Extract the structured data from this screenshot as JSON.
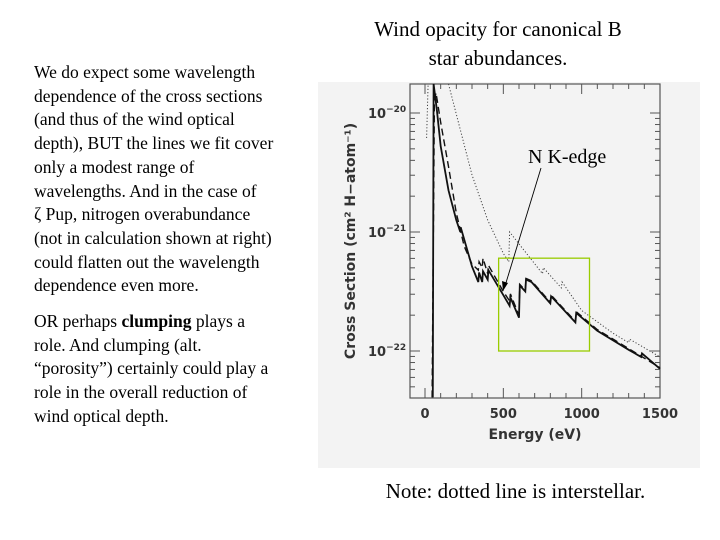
{
  "slide": {
    "title_lines": [
      "Wind opacity for canonical B",
      "star abundances."
    ],
    "paragraph1_lines": [
      "We do expect some wavelength",
      "dependence of the cross sections",
      "(and thus of the wind optical",
      "depth), BUT the lines we fit cover",
      "only a modest range of",
      "wavelengths.  And in the case of",
      "ζ Pup, nitrogen overabundance",
      "(not in calculation shown at right)",
      "could flatten out the wavelength",
      "dependence even more."
    ],
    "paragraph2": {
      "line1_pre": "OR perhaps ",
      "line1_bold": "clumping",
      "line1_post": " plays a",
      "lines": [
        "role.  And clumping (alt.",
        "“porosity”) certainly could play a",
        "role in the overall reduction of",
        "wind optical depth."
      ]
    },
    "note": "Note: dotted line is interstellar.",
    "annotation": "N K-edge",
    "highlight_color": "#99cc00"
  },
  "chart_data": {
    "type": "line",
    "xlabel": "Energy (eV)",
    "ylabel": "Cross Section (cm² H−atom⁻¹)",
    "xlim": [
      -100,
      1500
    ],
    "ylim_log10": [
      -22.39,
      -19.75
    ],
    "yscale": "log",
    "xticks": [
      "0",
      "500",
      "1000",
      "1500"
    ],
    "xtick_values": [
      0,
      500,
      1000,
      1500
    ],
    "yticks": [
      {
        "base": "10",
        "exp": "−20",
        "log10": -20
      },
      {
        "base": "10",
        "exp": "−21",
        "log10": -21
      },
      {
        "base": "10",
        "exp": "−22",
        "log10": -22
      }
    ],
    "annotation": {
      "text": "N K-edge",
      "x": 500,
      "y_log10": -21.45
    },
    "highlight_box": {
      "x": [
        470,
        1050
      ],
      "y_log10": [
        -22.0,
        -21.22
      ]
    },
    "series": [
      {
        "name": "wind (solid)",
        "style": "solid",
        "points": [
          [
            50,
            -22.39
          ],
          [
            55,
            -19.75
          ],
          [
            75,
            -19.97
          ],
          [
            100,
            -20.28
          ],
          [
            150,
            -20.65
          ],
          [
            200,
            -20.9
          ],
          [
            225,
            -21.0
          ],
          [
            228,
            -20.96
          ],
          [
            300,
            -21.29
          ],
          [
            340,
            -21.42
          ],
          [
            345,
            -21.34
          ],
          [
            365,
            -21.42
          ],
          [
            370,
            -21.33
          ],
          [
            400,
            -21.4
          ],
          [
            405,
            -21.32
          ],
          [
            500,
            -21.53
          ],
          [
            540,
            -21.62
          ],
          [
            545,
            -21.55
          ],
          [
            600,
            -21.72
          ],
          [
            605,
            -21.45
          ],
          [
            640,
            -21.5
          ],
          [
            645,
            -21.4
          ],
          [
            680,
            -21.42
          ],
          [
            800,
            -21.6
          ],
          [
            805,
            -21.54
          ],
          [
            960,
            -21.76
          ],
          [
            965,
            -21.68
          ],
          [
            1100,
            -21.83
          ],
          [
            1300,
            -21.99
          ],
          [
            1380,
            -22.05
          ],
          [
            1385,
            -22.02
          ],
          [
            1500,
            -22.15
          ]
        ]
      },
      {
        "name": "wind (dashed)",
        "style": "dashed",
        "points": [
          [
            45,
            -22.39
          ],
          [
            60,
            -19.9
          ],
          [
            70,
            -19.83
          ],
          [
            100,
            -20.08
          ],
          [
            150,
            -20.45
          ],
          [
            200,
            -20.84
          ],
          [
            250,
            -21.12
          ],
          [
            300,
            -21.27
          ],
          [
            340,
            -21.32
          ],
          [
            345,
            -21.25
          ],
          [
            365,
            -21.3
          ],
          [
            370,
            -21.22
          ],
          [
            400,
            -21.35
          ],
          [
            405,
            -21.28
          ],
          [
            500,
            -21.5
          ],
          [
            540,
            -21.58
          ],
          [
            545,
            -21.52
          ],
          [
            600,
            -21.7
          ],
          [
            605,
            -21.44
          ],
          [
            640,
            -21.49
          ],
          [
            645,
            -21.39
          ],
          [
            680,
            -21.41
          ],
          [
            800,
            -21.59
          ],
          [
            805,
            -21.53
          ],
          [
            960,
            -21.75
          ],
          [
            965,
            -21.67
          ],
          [
            1100,
            -21.82
          ],
          [
            1300,
            -21.98
          ],
          [
            1500,
            -22.14
          ]
        ]
      },
      {
        "name": "interstellar (dotted)",
        "style": "dotted",
        "points": [
          [
            10,
            -20.21
          ],
          [
            20,
            -19.75
          ]
        ]
      },
      {
        "name": "interstellar (dotted) cont.",
        "style": "dotted",
        "points": [
          [
            150,
            -19.75
          ],
          [
            300,
            -20.52
          ],
          [
            400,
            -20.9
          ],
          [
            500,
            -21.18
          ],
          [
            535,
            -21.25
          ],
          [
            540,
            -21.0
          ],
          [
            600,
            -21.1
          ],
          [
            750,
            -21.35
          ],
          [
            755,
            -21.3
          ],
          [
            870,
            -21.47
          ],
          [
            875,
            -21.42
          ],
          [
            1000,
            -21.66
          ],
          [
            1200,
            -21.85
          ],
          [
            1300,
            -21.93
          ],
          [
            1305,
            -21.9
          ],
          [
            1500,
            -22.05
          ]
        ]
      }
    ]
  }
}
